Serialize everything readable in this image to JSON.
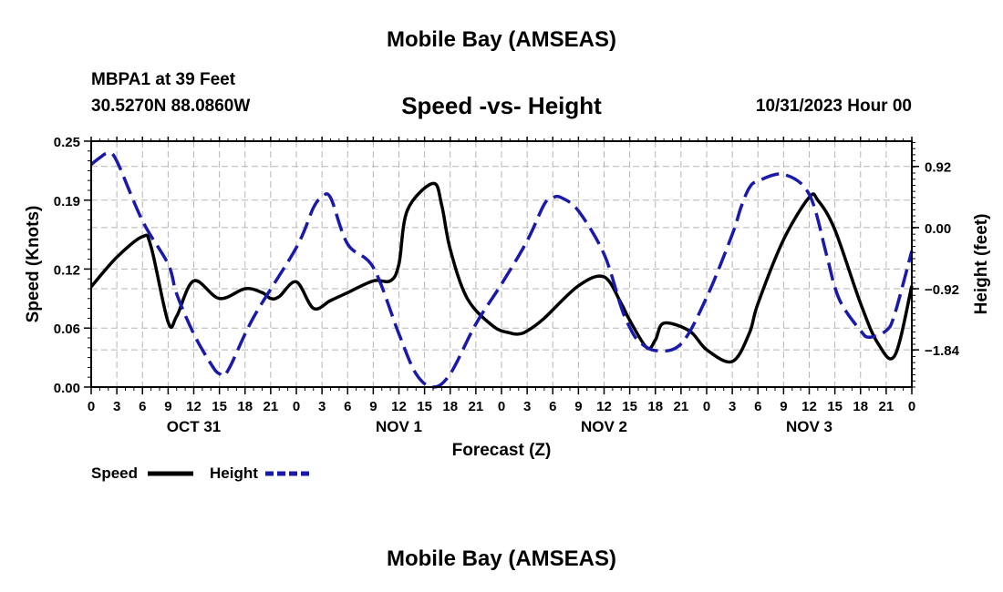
{
  "header": {
    "title": "Mobile Bay (AMSEAS)",
    "station": "MBPA1 at 39 Feet",
    "coords": "30.5270N   88.0860W",
    "subtitle": "Speed -vs- Height",
    "date": "10/31/2023 Hour 00"
  },
  "footer": {
    "title": "Mobile Bay (AMSEAS)"
  },
  "chart_data": {
    "type": "line",
    "xlabel": "Forecast (Z)",
    "ylabel_left": "Speed (Knots)",
    "ylabel_right": "Height (feet)",
    "x_hours_range": [
      0,
      96
    ],
    "hour_tick_labels": [
      "0",
      "3",
      "6",
      "9",
      "12",
      "15",
      "18",
      "21",
      "0",
      "3",
      "6",
      "9",
      "12",
      "15",
      "18",
      "21",
      "0",
      "3",
      "6",
      "9",
      "12",
      "15",
      "18",
      "21",
      "0",
      "3",
      "6",
      "9",
      "12",
      "15",
      "18",
      "21",
      "0"
    ],
    "day_labels": [
      "OCT 31",
      "NOV 1",
      "NOV 2",
      "NOV 3"
    ],
    "left_axis": {
      "ylim": [
        0,
        0.25
      ],
      "ticks": [
        0.0,
        0.06,
        0.12,
        0.19,
        0.25
      ],
      "tick_labels": [
        "0.00",
        "0.06",
        "0.12",
        "0.19",
        "0.25"
      ]
    },
    "right_axis": {
      "ylim": [
        -2.4,
        1.3
      ],
      "ticks": [
        0.92,
        0.0,
        -0.92,
        -1.84
      ],
      "tick_labels": [
        "0.92",
        "0.00",
        "−0.92",
        "−1.84"
      ]
    },
    "grid": true,
    "legend_position": "bottom-left",
    "series": [
      {
        "name": "Speed",
        "axis": "left",
        "color": "#000000",
        "dash": "solid",
        "x": [
          0,
          3,
          6,
          7,
          9,
          10,
          12,
          15,
          18,
          20,
          21,
          22,
          24,
          26,
          28,
          30,
          33,
          35,
          36,
          37,
          40,
          41,
          42,
          44,
          47,
          49,
          50,
          51,
          53,
          57,
          60,
          62,
          63,
          65,
          66,
          67,
          70,
          72,
          75,
          77,
          78,
          81,
          84,
          85,
          87,
          90,
          92,
          94,
          96
        ],
        "y": [
          0.102,
          0.132,
          0.153,
          0.143,
          0.066,
          0.072,
          0.108,
          0.09,
          0.1,
          0.096,
          0.09,
          0.092,
          0.107,
          0.08,
          0.088,
          0.096,
          0.108,
          0.108,
          0.125,
          0.18,
          0.207,
          0.185,
          0.14,
          0.09,
          0.062,
          0.055,
          0.054,
          0.057,
          0.07,
          0.103,
          0.112,
          0.085,
          0.068,
          0.04,
          0.048,
          0.065,
          0.057,
          0.038,
          0.026,
          0.055,
          0.085,
          0.15,
          0.193,
          0.19,
          0.16,
          0.085,
          0.045,
          0.032,
          0.103
        ]
      },
      {
        "name": "Height",
        "axis": "right",
        "color": "#1a1aaa",
        "dash": "dashed",
        "x": [
          0,
          1,
          2,
          3,
          6,
          9,
          10,
          12,
          14,
          15,
          16,
          19,
          24,
          26,
          27,
          28,
          30,
          33,
          36,
          38,
          40,
          42,
          45,
          48,
          51,
          53,
          54,
          55,
          57,
          60,
          62,
          63,
          64,
          66,
          69,
          72,
          75,
          76,
          77,
          78,
          81,
          84,
          86,
          87,
          88,
          90,
          91,
          93,
          94,
          96
        ],
        "y": [
          0.95,
          1.05,
          1.12,
          1.0,
          0.1,
          -0.55,
          -1.0,
          -1.6,
          -2.05,
          -2.2,
          -2.15,
          -1.35,
          -0.3,
          0.3,
          0.45,
          0.45,
          -0.25,
          -0.6,
          -1.6,
          -2.2,
          -2.4,
          -2.2,
          -1.45,
          -0.85,
          -0.2,
          0.35,
          0.45,
          0.45,
          0.25,
          -0.4,
          -1.2,
          -1.5,
          -1.7,
          -1.85,
          -1.75,
          -1.05,
          -0.1,
          0.3,
          0.6,
          0.7,
          0.8,
          0.5,
          -0.4,
          -0.9,
          -1.2,
          -1.55,
          -1.65,
          -1.55,
          -1.3,
          -0.35
        ]
      }
    ]
  },
  "legend": {
    "speed_label": "Speed",
    "height_label": "Height"
  }
}
